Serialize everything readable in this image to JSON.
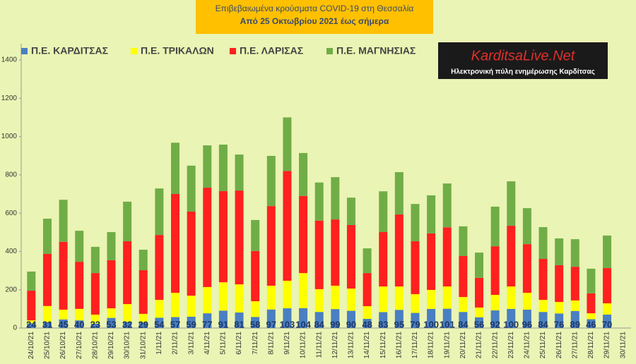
{
  "chart_data": {
    "type": "stacked_bar",
    "title": "Επιβεβαιωμένα κρούσματα COVID-19 στη Θεσσαλία",
    "subtitle": "Από 25 Οκτωβρίου 2021 έως σήμερα",
    "annotations": [
      "KarditsaLive.Net",
      "Ηλεκτρονική πύλη ενημέρωσης Καρδίτσας"
    ],
    "categories": [
      "24/10/21",
      "25/10/21",
      "26/10/21",
      "27/10/21",
      "28/10/21",
      "29/10/21",
      "30/10/21",
      "31/10/21",
      "1/11/21",
      "2/11/21",
      "3/11/21",
      "4/11/21",
      "5/11/21",
      "6/11/21",
      "7/11/21",
      "8/11/21",
      "9/11/21",
      "10/11/21",
      "11/11/21",
      "12/11/21",
      "13/11/21",
      "14/11/21",
      "15/11/21",
      "16/11/21",
      "17/11/21",
      "18/11/21",
      "19/11/21",
      "20/11/21",
      "21/11/21",
      "22/11/21",
      "23/11/21",
      "24/11/21",
      "25/11/21",
      "26/11/21",
      "27/11/21",
      "28/11/21",
      "29/11/21",
      "30/11/21"
    ],
    "series": [
      {
        "name": "Π.Ε. ΚΑΡΔΙΤΣΑΣ",
        "color": "#4a7fc1",
        "values": [
          24,
          31,
          45,
          40,
          23,
          53,
          32,
          29,
          54,
          57,
          59,
          77,
          91,
          81,
          58,
          97,
          103,
          104,
          84,
          99,
          90,
          48,
          83,
          95,
          79,
          100,
          101,
          84,
          56,
          92,
          100,
          96,
          84,
          76,
          89,
          46,
          70,
          null
        ]
      },
      {
        "name": "Π.Ε. ΤΡΙΚΑΛΩΝ",
        "color": "#ffff00",
        "values": [
          16,
          84,
          51,
          60,
          47,
          50,
          93,
          45,
          93,
          127,
          110,
          137,
          148,
          147,
          82,
          124,
          144,
          183,
          119,
          122,
          116,
          66,
          134,
          122,
          98,
          99,
          116,
          78,
          51,
          81,
          117,
          88,
          63,
          60,
          55,
          31,
          59,
          null
        ]
      },
      {
        "name": "Π.Ε. ΛΑΡΙΣΑΣ",
        "color": "#ff2020",
        "values": [
          155,
          272,
          354,
          246,
          217,
          251,
          328,
          228,
          339,
          516,
          439,
          519,
          476,
          490,
          262,
          416,
          573,
          403,
          358,
          346,
          332,
          173,
          284,
          376,
          276,
          295,
          309,
          214,
          155,
          254,
          317,
          254,
          214,
          192,
          176,
          104,
          184,
          null
        ]
      },
      {
        "name": "Π.Ε. ΜΑΓΝΗΣΙΑΣ",
        "color": "#70ad47",
        "values": [
          100,
          184,
          220,
          162,
          137,
          147,
          207,
          107,
          243,
          268,
          240,
          221,
          243,
          188,
          162,
          262,
          280,
          224,
          199,
          221,
          143,
          129,
          213,
          221,
          195,
          199,
          229,
          155,
          132,
          207,
          232,
          188,
          166,
          140,
          144,
          129,
          170,
          null
        ]
      }
    ],
    "ylim": [
      0,
      1400
    ],
    "yticks": [
      0,
      200,
      400,
      600,
      800,
      1000,
      1200,
      1400
    ],
    "grid": false
  }
}
